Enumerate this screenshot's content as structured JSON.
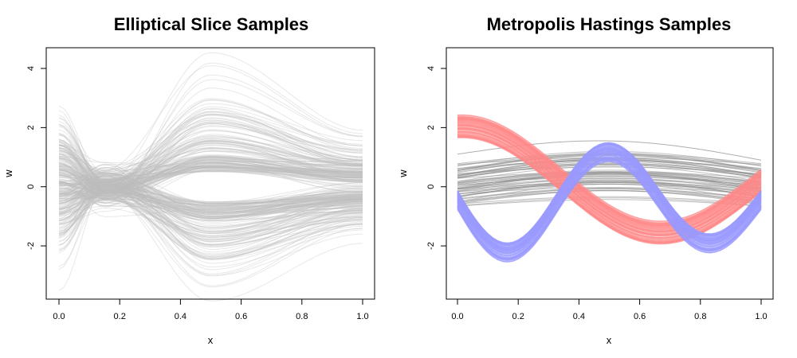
{
  "chart_data": [
    {
      "type": "line",
      "title": "Elliptical Slice Samples",
      "xlabel": "x",
      "ylabel": "w",
      "xlim": [
        0,
        1
      ],
      "ylim": [
        -3.8,
        4.7
      ],
      "xticks": [
        "0.0",
        "0.2",
        "0.4",
        "0.6",
        "0.8",
        "1.0"
      ],
      "yticks": [
        "-2",
        "0",
        "2",
        "4"
      ],
      "grid": false,
      "series": [
        {
          "color": "#bdbdbd",
          "count": 300,
          "description_values": {
            "x": [
              0.0,
              0.15,
              0.5,
              1.0
            ],
            "y_min": [
              -2.9,
              -0.3,
              -3.3,
              -1.6
            ],
            "y_max": [
              2.8,
              0.9,
              3.4,
              1.2
            ]
          }
        }
      ]
    },
    {
      "type": "line",
      "title": "Metropolis Hastings Samples",
      "xlabel": "x",
      "ylabel": "w",
      "xlim": [
        0,
        1
      ],
      "ylim": [
        -3.8,
        4.7
      ],
      "xticks": [
        "0.0",
        "0.2",
        "0.4",
        "0.6",
        "0.8",
        "1.0"
      ],
      "yticks": [
        "-2",
        "0",
        "2",
        "4"
      ],
      "grid": false,
      "series": [
        {
          "color": "#8c8c8c",
          "count": 60,
          "x": [
            0.0,
            0.5,
            1.0
          ],
          "y_min": [
            -1.2,
            -0.4,
            -1.1
          ],
          "y_max": [
            1.1,
            1.6,
            1.3
          ]
        },
        {
          "color": "#ff8a8a",
          "count": 120,
          "x": [
            0.0,
            0.2,
            0.45,
            0.6,
            0.8,
            1.0
          ],
          "y_center": [
            2.0,
            0.9,
            -1.3,
            -1.6,
            -0.6,
            0.3
          ]
        },
        {
          "color": "#9c9cff",
          "count": 120,
          "x": [
            0.0,
            0.17,
            0.33,
            0.5,
            0.67,
            0.83,
            1.0
          ],
          "y_center": [
            -0.7,
            -2.3,
            -0.2,
            1.7,
            -0.3,
            -0.9,
            -0.2
          ]
        }
      ]
    }
  ]
}
